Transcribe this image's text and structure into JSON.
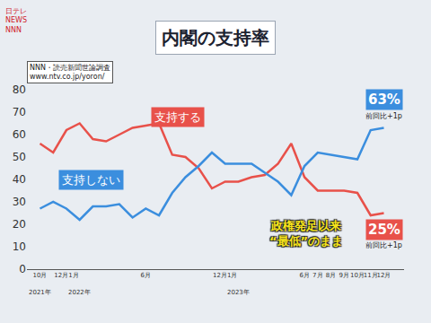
{
  "chart_data": {
    "type": "line",
    "title": "内閣の支持率",
    "logo": [
      "日テレ",
      "NEWS",
      "NNN"
    ],
    "source": [
      "NNN・読売新聞世論調査",
      "www.ntv.co.jp/yoron/"
    ],
    "categories": [
      "10月",
      null,
      "12月1月",
      null,
      null,
      null,
      null,
      null,
      "6月",
      null,
      null,
      null,
      null,
      null,
      "12月1月",
      null,
      null,
      null,
      null,
      null,
      "6月",
      "7月",
      "8月",
      "9月",
      "10月",
      "11月",
      "12月"
    ],
    "year_labels": [
      {
        "text": "2021年",
        "index": 0
      },
      {
        "text": "2022年",
        "index": 3
      },
      {
        "text": "2023年",
        "index": 15
      }
    ],
    "series": [
      {
        "name": "支持する",
        "color": "#e8514a",
        "values": [
          56,
          52,
          62,
          65,
          58,
          57,
          60,
          63,
          64,
          65,
          51,
          50,
          45,
          36,
          39,
          39,
          41,
          42,
          47,
          56,
          41,
          35,
          35,
          35,
          34,
          24,
          25
        ],
        "value_labels": [
          null,
          null,
          null,
          null,
          null,
          null,
          null,
          null,
          null,
          null,
          null,
          null,
          null,
          null,
          null,
          null,
          null,
          null,
          null,
          null,
          null,
          null,
          null,
          null,
          null,
          null,
          "25%"
        ],
        "change_label": "前回比+1p"
      },
      {
        "name": "支持しない",
        "color": "#3b8ede",
        "values": [
          27,
          30,
          27,
          22,
          28,
          28,
          29,
          23,
          27,
          24,
          34,
          41,
          46,
          52,
          47,
          47,
          47,
          43,
          39,
          33,
          46,
          52,
          51,
          50,
          49,
          62,
          63
        ],
        "value_labels": [
          null,
          null,
          null,
          null,
          null,
          null,
          null,
          null,
          null,
          null,
          null,
          null,
          null,
          null,
          null,
          null,
          null,
          null,
          null,
          null,
          null,
          null,
          null,
          null,
          null,
          null,
          "63%"
        ],
        "change_label": "前回比+1p"
      }
    ],
    "annotations": [
      {
        "text": [
          "政権発足以来",
          "“最低”のまま"
        ]
      }
    ],
    "ylim": [
      0,
      80
    ],
    "yticks": [
      0,
      10,
      20,
      30,
      40,
      50,
      60,
      70,
      80
    ],
    "grid": false
  }
}
